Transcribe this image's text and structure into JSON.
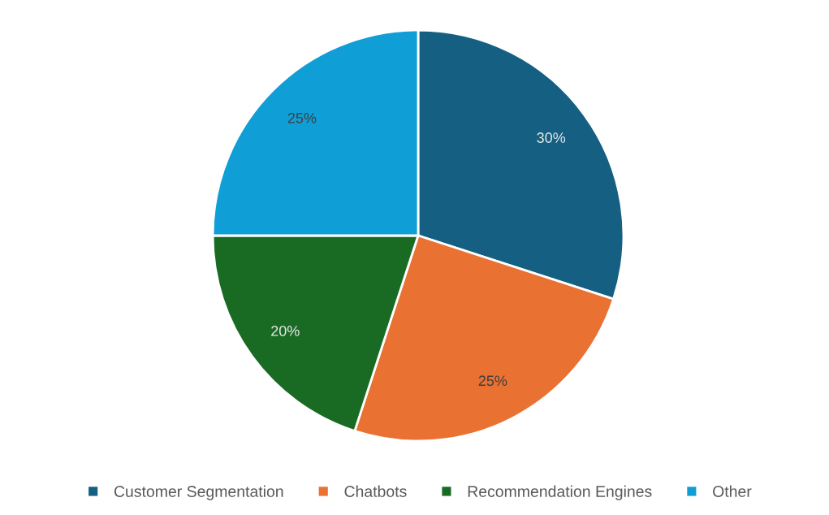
{
  "chart_data": {
    "type": "pie",
    "categories": [
      "Customer Segmentation",
      "Chatbots",
      "Recommendation Engines",
      "Other"
    ],
    "values": [
      30,
      25,
      20,
      25
    ],
    "colors": [
      "#156082",
      "#e97132",
      "#196b24",
      "#0f9ed5"
    ],
    "value_labels": [
      "30%",
      "25%",
      "20%",
      "25%"
    ],
    "legend": "bottom"
  }
}
